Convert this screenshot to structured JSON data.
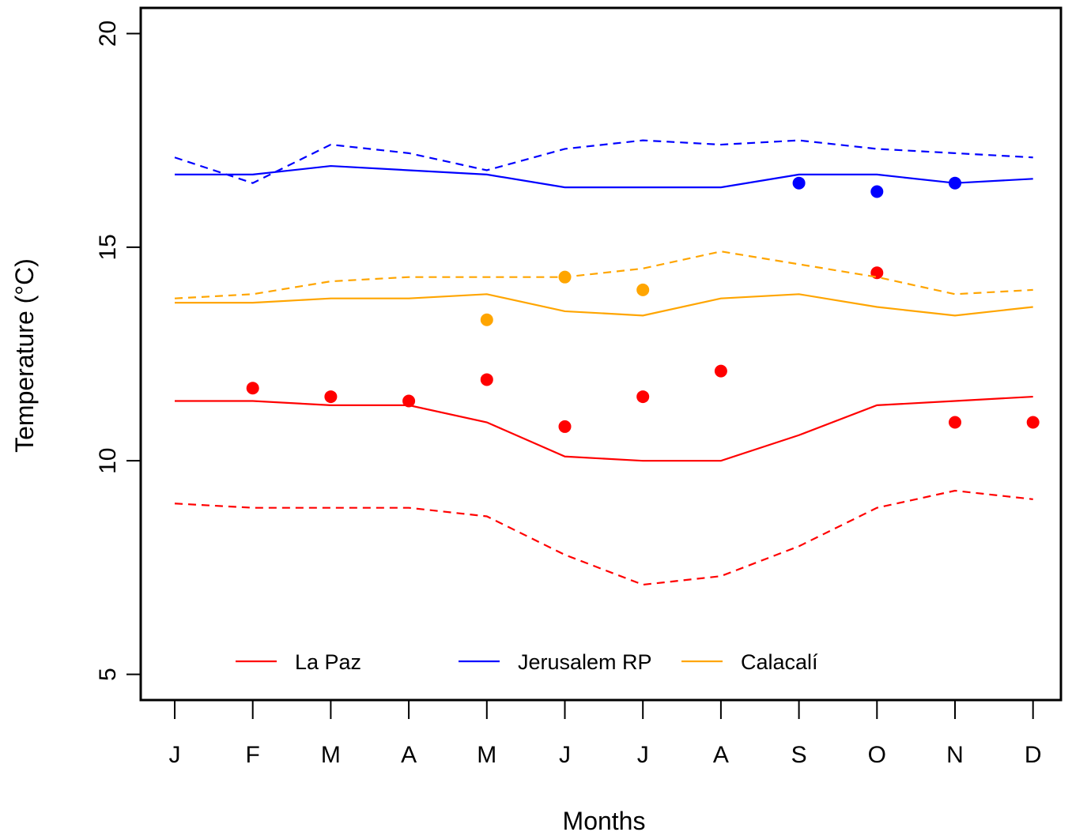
{
  "chart_data": {
    "type": "line",
    "xlabel": "Months",
    "ylabel": "Temperature (°C)",
    "categories": [
      "J",
      "F",
      "M",
      "A",
      "M",
      "J",
      "J",
      "A",
      "S",
      "O",
      "N",
      "D"
    ],
    "ylim": [
      4.4,
      20.6
    ],
    "yticks": [
      5,
      10,
      15,
      20
    ],
    "grid": false,
    "legend_position": "bottom",
    "series": [
      {
        "name": "La Paz",
        "color": "#FF0000",
        "solid": [
          11.4,
          11.4,
          11.3,
          11.3,
          10.9,
          10.1,
          10.0,
          10.0,
          10.6,
          11.3,
          11.4,
          11.5
        ],
        "dashed": [
          9.0,
          8.9,
          8.9,
          8.9,
          8.7,
          7.8,
          7.1,
          7.3,
          8.0,
          8.9,
          9.3,
          9.1
        ],
        "points": [
          null,
          11.7,
          11.5,
          11.4,
          11.9,
          10.8,
          11.5,
          12.1,
          null,
          14.4,
          10.9,
          10.9
        ]
      },
      {
        "name": "Jerusalem RP",
        "color": "#0000FF",
        "solid": [
          16.7,
          16.7,
          16.9,
          16.8,
          16.7,
          16.4,
          16.4,
          16.4,
          16.7,
          16.7,
          16.5,
          16.6
        ],
        "dashed": [
          17.1,
          16.5,
          17.4,
          17.2,
          16.8,
          17.3,
          17.5,
          17.4,
          17.5,
          17.3,
          17.2,
          17.1
        ],
        "points": [
          null,
          null,
          null,
          null,
          null,
          null,
          null,
          null,
          16.5,
          16.3,
          16.5,
          null
        ]
      },
      {
        "name": "Calacalí",
        "color": "#FFA500",
        "solid": [
          13.7,
          13.7,
          13.8,
          13.8,
          13.9,
          13.5,
          13.4,
          13.8,
          13.9,
          13.6,
          13.4,
          13.6
        ],
        "dashed": [
          13.8,
          13.9,
          14.2,
          14.3,
          14.3,
          14.3,
          14.5,
          14.9,
          14.6,
          14.3,
          13.9,
          14.0
        ],
        "points": [
          null,
          null,
          null,
          null,
          13.3,
          14.3,
          14.0,
          null,
          null,
          null,
          null,
          null
        ]
      }
    ]
  }
}
